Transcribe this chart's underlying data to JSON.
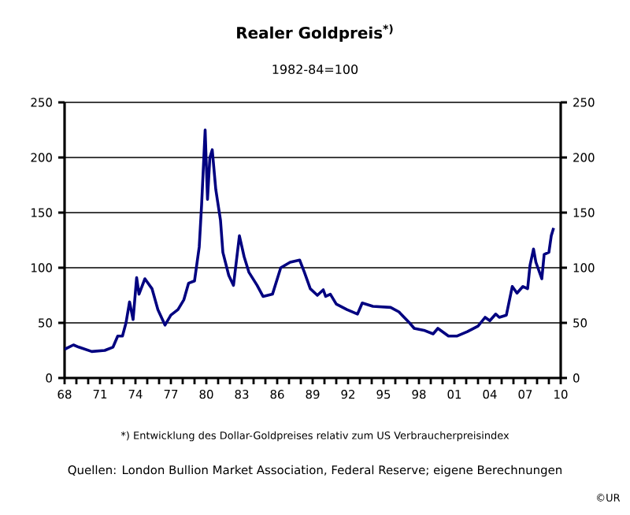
{
  "chart_data": {
    "type": "line",
    "title": "Realer Goldpreis$^{*)}$",
    "subtitle": "1982-84=100",
    "annotations": [
      "*) Entwicklung des Dollar-Goldpreises relativ zum US Verbraucherpreisindex",
      "Quellen: London Bullion Market Association, Federal Reserve; eigene Berechnungen",
      "©UR"
    ],
    "x": [
      1968.0,
      1968.75,
      1969.2,
      1970.3,
      1971.4,
      1972.1,
      1972.5,
      1972.9,
      1973.2,
      1973.5,
      1973.8,
      1974.1,
      1974.3,
      1974.8,
      1975.4,
      1975.9,
      1976.5,
      1977.0,
      1977.6,
      1978.1,
      1978.5,
      1979.0,
      1979.4,
      1979.6,
      1979.9,
      1980.1,
      1980.3,
      1980.5,
      1980.8,
      1981.2,
      1981.4,
      1981.9,
      1982.3,
      1982.8,
      1983.2,
      1983.6,
      1984.3,
      1984.8,
      1985.6,
      1986.3,
      1987.1,
      1987.9,
      1988.3,
      1988.8,
      1989.4,
      1989.9,
      1990.1,
      1990.5,
      1991.0,
      1991.9,
      1992.8,
      1993.2,
      1994.1,
      1995.6,
      1996.3,
      1997.2,
      1997.6,
      1998.5,
      1999.2,
      1999.6,
      2000.5,
      2001.2,
      2002.1,
      2003.0,
      2003.6,
      2004.0,
      2004.5,
      2004.8,
      2005.4,
      2005.9,
      2006.3,
      2006.8,
      2007.2,
      2007.4,
      2007.7,
      2007.9,
      2008.4,
      2008.6,
      2009.0,
      2009.2,
      2009.4
    ],
    "series": [
      {
        "color": "#000080",
        "values": [
          26,
          30,
          28,
          24,
          25,
          28,
          38,
          38,
          50,
          69,
          53,
          91,
          76,
          90,
          81,
          62,
          48,
          57,
          62,
          71,
          86,
          88,
          119,
          157,
          225,
          162,
          200,
          207,
          171,
          143,
          114,
          93,
          84,
          129,
          110,
          96,
          84,
          74,
          76,
          100,
          105,
          107,
          96,
          81,
          75,
          80,
          74,
          76,
          67,
          62,
          58,
          68,
          65,
          64,
          60,
          50,
          45,
          43,
          40,
          45,
          38,
          38,
          42,
          47,
          55,
          52,
          58,
          55,
          57,
          83,
          77,
          83,
          81,
          102,
          117,
          105,
          90,
          112,
          114,
          129,
          136
        ]
      }
    ],
    "ylim": [
      0,
      250
    ],
    "yticks": [
      0,
      50,
      100,
      150,
      200,
      250
    ],
    "y2lim": [
      0,
      250
    ],
    "y2ticks": [
      0,
      50,
      100,
      150,
      200,
      250
    ],
    "xlim": [
      1968,
      2010
    ],
    "xticks": [
      {
        "value": 1968,
        "label": "68"
      },
      {
        "value": 1969,
        "label": null
      },
      {
        "value": 1970,
        "label": null
      },
      {
        "value": 1971,
        "label": "71"
      },
      {
        "value": 1972,
        "label": null
      },
      {
        "value": 1973,
        "label": null
      },
      {
        "value": 1974,
        "label": "74"
      },
      {
        "value": 1975,
        "label": null
      },
      {
        "value": 1976,
        "label": null
      },
      {
        "value": 1977,
        "label": "77"
      },
      {
        "value": 1978,
        "label": null
      },
      {
        "value": 1979,
        "label": null
      },
      {
        "value": 1980,
        "label": "80"
      },
      {
        "value": 1981,
        "label": null
      },
      {
        "value": 1982,
        "label": null
      },
      {
        "value": 1983,
        "label": "83"
      },
      {
        "value": 1984,
        "label": null
      },
      {
        "value": 1985,
        "label": null
      },
      {
        "value": 1986,
        "label": "86"
      },
      {
        "value": 1987,
        "label": null
      },
      {
        "value": 1988,
        "label": null
      },
      {
        "value": 1989,
        "label": "89"
      },
      {
        "value": 1990,
        "label": null
      },
      {
        "value": 1991,
        "label": null
      },
      {
        "value": 1992,
        "label": "92"
      },
      {
        "value": 1993,
        "label": null
      },
      {
        "value": 1994,
        "label": null
      },
      {
        "value": 1995,
        "label": "95"
      },
      {
        "value": 1996,
        "label": null
      },
      {
        "value": 1997,
        "label": null
      },
      {
        "value": 1998,
        "label": "98"
      },
      {
        "value": 1999,
        "label": null
      },
      {
        "value": 2000,
        "label": null
      },
      {
        "value": 2001,
        "label": "01"
      },
      {
        "value": 2002,
        "label": null
      },
      {
        "value": 2003,
        "label": null
      },
      {
        "value": 2004,
        "label": "04"
      },
      {
        "value": 2005,
        "label": null
      },
      {
        "value": 2006,
        "label": null
      },
      {
        "value": 2007,
        "label": "07"
      },
      {
        "value": 2008,
        "label": null
      },
      {
        "value": 2009,
        "label": null
      },
      {
        "value": 2010,
        "label": "10"
      }
    ],
    "grid": "y",
    "marker": "none",
    "line_style": "solid"
  }
}
